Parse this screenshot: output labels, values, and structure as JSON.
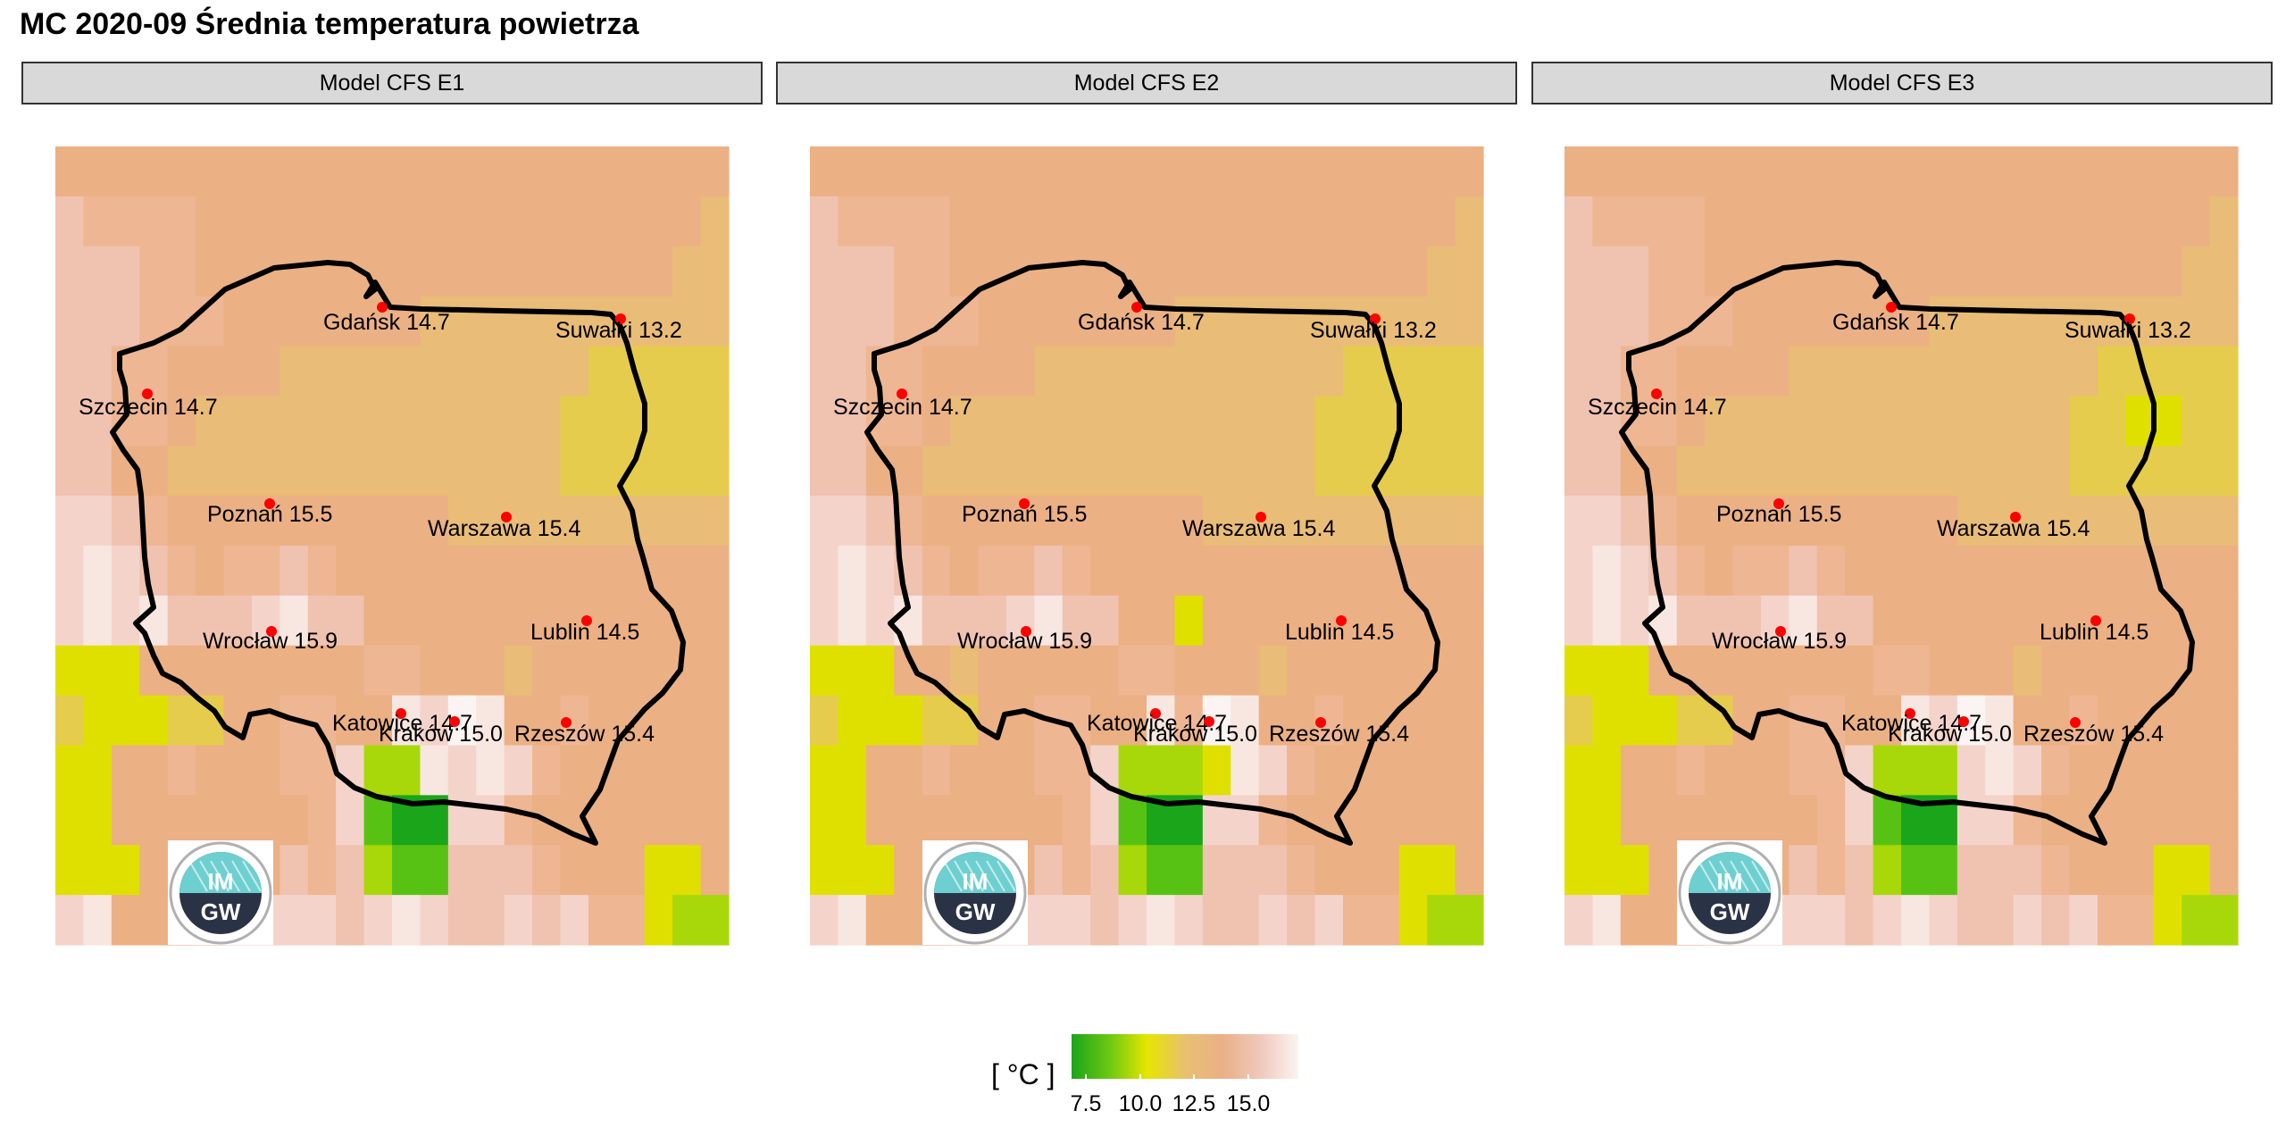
{
  "title": "MC 2020-09 Średnia temperatura powietrza",
  "panels": [
    {
      "label": "Model CFS E1",
      "variant": 0
    },
    {
      "label": "Model CFS E2",
      "variant": 1
    },
    {
      "label": "Model CFS E3",
      "variant": 2
    }
  ],
  "cities": [
    {
      "name": "Gdańsk",
      "value": "14.7",
      "label": "Gdańsk 14.7"
    },
    {
      "name": "Suwałki",
      "value": "13.2",
      "label": "Suwałki 13.2"
    },
    {
      "name": "Szczecin",
      "value": "14.7",
      "label": "Szczecin 14.7"
    },
    {
      "name": "Poznań",
      "value": "15.5",
      "label": "Poznań 15.5"
    },
    {
      "name": "Warszawa",
      "value": "15.4",
      "label": "Warszawa 15.4"
    },
    {
      "name": "Lublin",
      "value": "14.5",
      "label": "Lublin 14.5"
    },
    {
      "name": "Wrocław",
      "value": "15.9",
      "label": "Wrocław 15.9"
    },
    {
      "name": "Katowice",
      "value": "14.7",
      "label": "Katowice 14.7"
    },
    {
      "name": "Kraków",
      "value": "15.0",
      "label": "Kraków 15.0"
    },
    {
      "name": "Rzeszów",
      "value": "15.4",
      "label": "Rzeszów 15.4"
    }
  ],
  "logo": {
    "text_top": "IM",
    "text_bottom": "GW"
  },
  "legend": {
    "unit": "[ °C ]",
    "ticks": [
      "7.5",
      "10.0",
      "12.5",
      "15.0"
    ],
    "colors": [
      "#1aa51a",
      "#6cc812",
      "#e6e600",
      "#e8c070",
      "#eab088",
      "#f0c8bc",
      "#fbf4f2"
    ]
  },
  "colors": {
    "marker": "#ff0000",
    "border": "#000000",
    "strip_bg": "#d9d9d9"
  }
}
